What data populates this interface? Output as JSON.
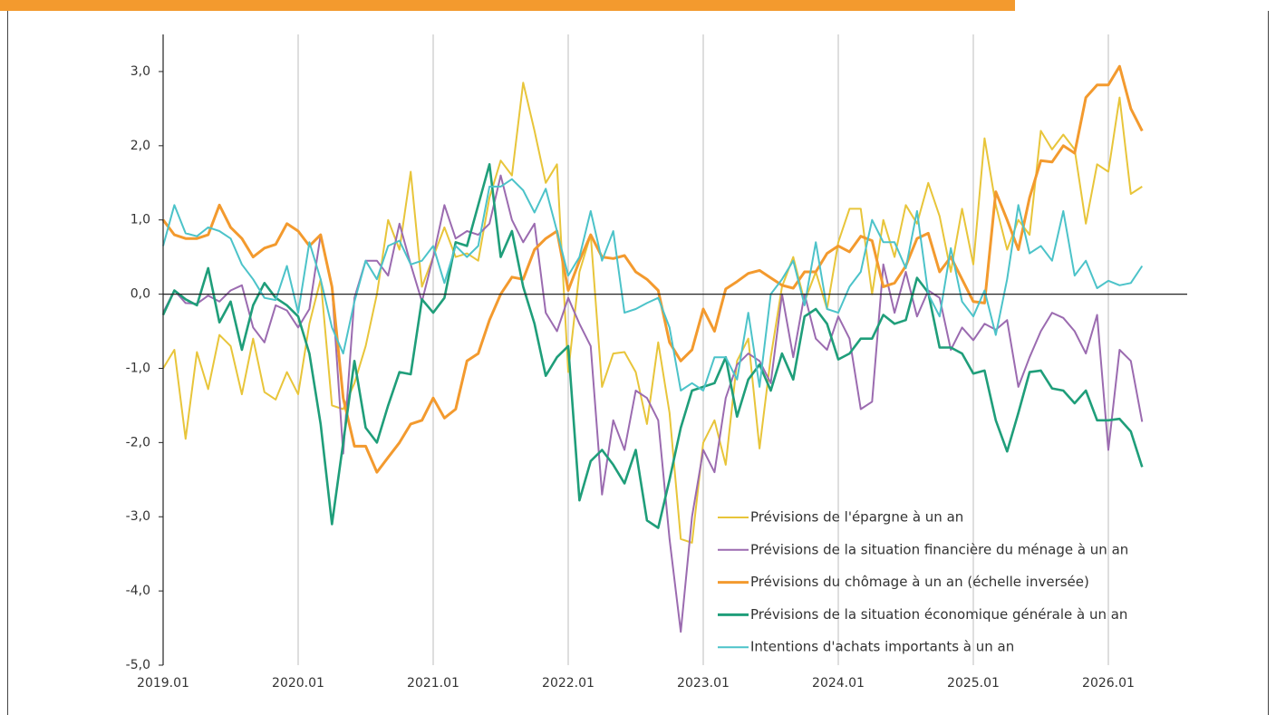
{
  "chart_data": {
    "type": "line",
    "categories": [
      "2019.01",
      null,
      null,
      null,
      null,
      null,
      null,
      null,
      null,
      null,
      null,
      null,
      "2020.01",
      null,
      null,
      null,
      null,
      null,
      null,
      null,
      null,
      null,
      null,
      null,
      "2021.01",
      null,
      null,
      null,
      null,
      null,
      null,
      null,
      null,
      null,
      null,
      null,
      "2022.01",
      null,
      null,
      null,
      null,
      null,
      null,
      null,
      null,
      null,
      null,
      null,
      "2023.01",
      null,
      null,
      null,
      null,
      null,
      null,
      null,
      null,
      null,
      null,
      null,
      "2024.01",
      null,
      null,
      null,
      null,
      null,
      null,
      null,
      null,
      null,
      null,
      null,
      "2025.01",
      null,
      null,
      null,
      null,
      null,
      null,
      null,
      null,
      null,
      null,
      null,
      "2026.01",
      null,
      null,
      null
    ],
    "ylim": [
      -5,
      3.5
    ],
    "yticks": [
      {
        "value": -5,
        "label": "-5,0"
      },
      {
        "value": -4,
        "label": "-4,0"
      },
      {
        "value": -3,
        "label": "-3,0"
      },
      {
        "value": -2,
        "label": "-2,0"
      },
      {
        "value": -1,
        "label": "-1,0"
      },
      {
        "value": 0,
        "label": "0,0"
      },
      {
        "value": 1,
        "label": "1,0"
      },
      {
        "value": 2,
        "label": "2,0"
      },
      {
        "value": 3,
        "label": "3,0"
      }
    ],
    "grid": true,
    "legend": "lower right",
    "series": [
      {
        "name": "Prévisions de l'épargne à un an",
        "color": "#e8c53a",
        "values": [
          -1.0,
          -0.75,
          -1.95,
          -0.78,
          -1.28,
          -0.55,
          -0.7,
          -1.35,
          -0.6,
          -1.32,
          -1.42,
          -1.05,
          -1.35,
          -0.4,
          0.2,
          -1.5,
          -1.55,
          -1.2,
          -0.7,
          0.0,
          1.0,
          0.6,
          1.65,
          0.1,
          0.5,
          0.9,
          0.5,
          0.55,
          0.45,
          1.3,
          1.8,
          1.6,
          2.85,
          2.2,
          1.5,
          1.75,
          -1.05,
          0.3,
          0.8,
          -1.25,
          -0.8,
          -0.78,
          -1.05,
          -1.75,
          -0.65,
          -1.6,
          -3.3,
          -3.35,
          -2.0,
          -1.7,
          -2.3,
          -0.9,
          -0.6,
          -2.08,
          -0.85,
          0.1,
          0.5,
          -0.1,
          0.3,
          -0.2,
          0.7,
          1.15,
          1.15,
          0.0,
          1.0,
          0.5,
          1.2,
          0.95,
          1.5,
          1.05,
          0.3,
          1.15,
          0.4,
          2.1,
          1.2,
          0.6,
          1.0,
          0.8,
          2.2,
          1.95,
          2.15,
          1.95,
          0.95,
          1.75,
          1.65,
          2.65,
          1.35,
          1.45
        ]
      },
      {
        "name": "Prévisions de la situation financière du ménage à un an",
        "color": "#9b6bb0",
        "values": [
          -0.25,
          0.05,
          -0.12,
          -0.13,
          -0.02,
          -0.1,
          0.05,
          0.12,
          -0.45,
          -0.65,
          -0.15,
          -0.22,
          -0.45,
          -0.2,
          0.8,
          0.1,
          -2.15,
          -0.05,
          0.45,
          0.45,
          0.25,
          0.95,
          0.4,
          -0.1,
          0.5,
          1.2,
          0.75,
          0.85,
          0.8,
          0.95,
          1.6,
          1.0,
          0.7,
          0.95,
          -0.25,
          -0.5,
          -0.05,
          -0.4,
          -0.7,
          -2.7,
          -1.7,
          -2.1,
          -1.3,
          -1.4,
          -1.7,
          -3.3,
          -4.55,
          -3.0,
          -2.1,
          -2.4,
          -1.4,
          -0.95,
          -0.8,
          -0.9,
          -1.2,
          0.0,
          -0.85,
          0.0,
          -0.6,
          -0.75,
          -0.3,
          -0.6,
          -1.55,
          -1.45,
          0.4,
          -0.25,
          0.3,
          -0.3,
          0.05,
          -0.05,
          -0.75,
          -0.45,
          -0.62,
          -0.4,
          -0.48,
          -0.35,
          -1.25,
          -0.85,
          -0.5,
          -0.25,
          -0.32,
          -0.5,
          -0.8,
          -0.28,
          -2.1,
          -0.75,
          -0.9,
          -1.72
        ]
      },
      {
        "name": "Prévisions du chômage à un an (échelle inversée)",
        "color": "#f39a2e",
        "values": [
          1.0,
          0.8,
          0.75,
          0.75,
          0.8,
          1.2,
          0.9,
          0.75,
          0.5,
          0.62,
          0.67,
          0.95,
          0.85,
          0.65,
          0.8,
          0.1,
          -1.4,
          -2.05,
          -2.05,
          -2.4,
          -2.2,
          -2.0,
          -1.75,
          -1.7,
          -1.4,
          -1.67,
          -1.55,
          -0.9,
          -0.8,
          -0.35,
          0.0,
          0.23,
          0.2,
          0.6,
          0.75,
          0.85,
          0.05,
          0.45,
          0.8,
          0.5,
          0.48,
          0.52,
          0.3,
          0.2,
          0.05,
          -0.65,
          -0.9,
          -0.75,
          -0.2,
          -0.5,
          0.07,
          0.17,
          0.28,
          0.32,
          0.22,
          0.12,
          0.08,
          0.3,
          0.3,
          0.55,
          0.65,
          0.57,
          0.78,
          0.72,
          0.1,
          0.15,
          0.38,
          0.75,
          0.82,
          0.3,
          0.5,
          0.2,
          -0.1,
          -0.12,
          1.38,
          1.0,
          0.6,
          1.3,
          1.8,
          1.78,
          2.0,
          1.9,
          2.65,
          2.82,
          2.82,
          3.07,
          2.5,
          2.2
        ]
      },
      {
        "name": "Prévisions de la situation économique générale à un an",
        "color": "#1f9e7a",
        "values": [
          -0.28,
          0.05,
          -0.07,
          -0.15,
          0.35,
          -0.38,
          -0.1,
          -0.75,
          -0.15,
          0.15,
          -0.05,
          -0.15,
          -0.3,
          -0.8,
          -1.75,
          -3.1,
          -2.0,
          -0.9,
          -1.8,
          -2.0,
          -1.5,
          -1.05,
          -1.08,
          -0.07,
          -0.25,
          -0.05,
          0.7,
          0.65,
          1.2,
          1.75,
          0.5,
          0.85,
          0.1,
          -0.4,
          -1.1,
          -0.85,
          -0.7,
          -2.78,
          -2.25,
          -2.1,
          -2.3,
          -2.55,
          -2.1,
          -3.05,
          -3.15,
          -2.5,
          -1.8,
          -1.3,
          -1.25,
          -1.2,
          -0.85,
          -1.65,
          -1.15,
          -0.95,
          -1.3,
          -0.8,
          -1.15,
          -0.3,
          -0.2,
          -0.4,
          -0.88,
          -0.8,
          -0.6,
          -0.6,
          -0.28,
          -0.4,
          -0.35,
          0.22,
          0.02,
          -0.72,
          -0.72,
          -0.8,
          -1.07,
          -1.03,
          -1.7,
          -2.12,
          -1.6,
          -1.05,
          -1.03,
          -1.27,
          -1.3,
          -1.47,
          -1.3,
          -1.7,
          -1.7,
          -1.68,
          -1.85,
          -2.33
        ]
      },
      {
        "name": "Intentions d'achats importants à un an",
        "color": "#4cc3c9",
        "values": [
          0.65,
          1.2,
          0.82,
          0.78,
          0.9,
          0.85,
          0.75,
          0.4,
          0.2,
          -0.05,
          -0.08,
          0.38,
          -0.25,
          0.7,
          0.2,
          -0.45,
          -0.8,
          -0.1,
          0.45,
          0.2,
          0.65,
          0.72,
          0.4,
          0.45,
          0.65,
          0.15,
          0.65,
          0.5,
          0.65,
          1.45,
          1.45,
          1.55,
          1.4,
          1.1,
          1.42,
          0.85,
          0.25,
          0.5,
          1.12,
          0.45,
          0.85,
          -0.25,
          -0.2,
          -0.12,
          -0.05,
          -0.45,
          -1.3,
          -1.2,
          -1.3,
          -0.85,
          -0.85,
          -1.15,
          -0.25,
          -1.25,
          0.0,
          0.2,
          0.45,
          -0.15,
          0.7,
          -0.2,
          -0.25,
          0.1,
          0.3,
          1.0,
          0.7,
          0.7,
          0.35,
          1.12,
          0.0,
          -0.3,
          0.62,
          -0.1,
          -0.3,
          0.05,
          -0.55,
          0.2,
          1.2,
          0.55,
          0.65,
          0.45,
          1.12,
          0.25,
          0.45,
          0.08,
          0.18,
          0.12,
          0.15,
          0.38
        ]
      }
    ]
  }
}
